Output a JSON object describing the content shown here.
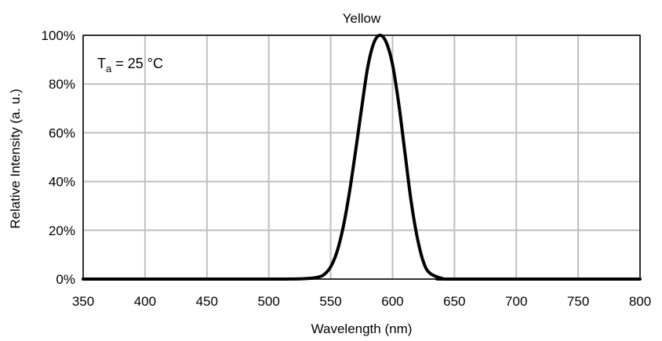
{
  "chart_data": {
    "type": "line",
    "title": "Yellow",
    "xlabel": "Wavelength (nm)",
    "ylabel": "Relative Intensity (a. u.)",
    "xlim": [
      350,
      800
    ],
    "ylim": [
      0,
      100
    ],
    "x_ticks": [
      350,
      400,
      450,
      500,
      550,
      600,
      650,
      700,
      750,
      800
    ],
    "y_ticks": [
      0,
      20,
      40,
      60,
      80,
      100
    ],
    "y_tick_labels": [
      "0%",
      "20%",
      "40%",
      "60%",
      "80%",
      "100%"
    ],
    "grid": true,
    "annotation": {
      "symbol": "T",
      "subscript": "a",
      "rest": " = 25 °C"
    },
    "series": [
      {
        "color": "#000000",
        "x": [
          350,
          500,
          530,
          540,
          545,
          550,
          555,
          560,
          565,
          570,
          575,
          580,
          585,
          590,
          595,
          600,
          605,
          610,
          615,
          620,
          625,
          630,
          640,
          650,
          800
        ],
        "y": [
          0,
          0,
          0.2,
          0.8,
          2,
          5,
          11,
          21,
          35,
          52,
          70,
          87,
          97,
          100,
          97,
          88,
          72,
          52,
          32,
          17,
          7,
          2.5,
          0.3,
          0,
          0
        ]
      }
    ]
  }
}
